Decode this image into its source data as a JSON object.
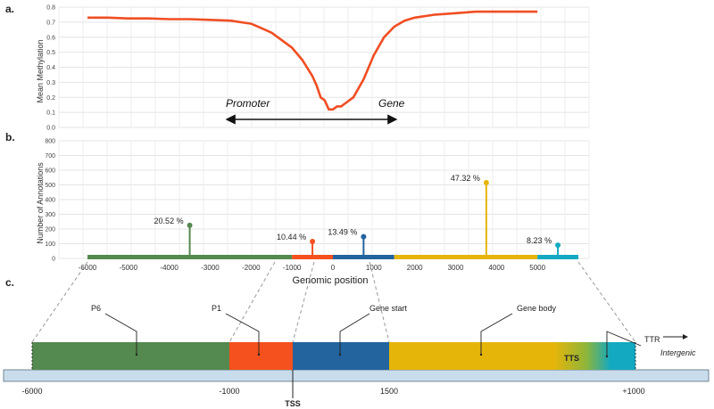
{
  "panels": {
    "a": "a.",
    "b": "b.",
    "c": "c."
  },
  "chart_data": [
    {
      "type": "line",
      "ylabel": "Mean Methylation",
      "ylim": [
        0,
        0.8
      ],
      "yticks": [
        "0.0",
        "0.1",
        "0.2",
        "0.3",
        "0.4",
        "0.5",
        "0.6",
        "0.7",
        "0.8"
      ],
      "xlim": [
        -6000,
        5000
      ],
      "color": "#f04e23",
      "x": [
        -6000,
        -5500,
        -5000,
        -4500,
        -4000,
        -3500,
        -3000,
        -2500,
        -2000,
        -1750,
        -1500,
        -1250,
        -1000,
        -750,
        -500,
        -400,
        -300,
        -200,
        -100,
        0,
        100,
        200,
        300,
        500,
        750,
        1000,
        1250,
        1500,
        1750,
        2000,
        2500,
        3000,
        3500,
        4000,
        4500,
        5000
      ],
      "y": [
        0.73,
        0.73,
        0.725,
        0.725,
        0.72,
        0.72,
        0.715,
        0.71,
        0.69,
        0.66,
        0.63,
        0.58,
        0.53,
        0.45,
        0.34,
        0.28,
        0.2,
        0.18,
        0.12,
        0.12,
        0.14,
        0.14,
        0.16,
        0.2,
        0.32,
        0.48,
        0.6,
        0.67,
        0.71,
        0.73,
        0.75,
        0.76,
        0.77,
        0.77,
        0.77,
        0.77
      ],
      "annotations": {
        "left": "Promoter",
        "right": "Gene"
      }
    },
    {
      "type": "lollipop",
      "ylabel": "Number of Annotations",
      "xlabel": "Genomic position",
      "ylim": [
        0,
        800
      ],
      "yticks": [
        "0",
        "100",
        "200",
        "300",
        "400",
        "500",
        "600",
        "700",
        "800"
      ],
      "xticks": [
        "-6000",
        "-5000",
        "-4000",
        "-3000",
        "-2000",
        "-1000",
        "0",
        "1000",
        "2000",
        "3000",
        "4000",
        "5000"
      ],
      "segments": [
        {
          "from": -6000,
          "to": -1000,
          "color": "#54894f"
        },
        {
          "from": -1000,
          "to": 0,
          "color": "#f4511e"
        },
        {
          "from": 0,
          "to": 1500,
          "color": "#23649e"
        },
        {
          "from": 1500,
          "to": 5000,
          "color": "#e6b50a"
        },
        {
          "from": 5000,
          "to": 6000,
          "color": "#12a9c1"
        }
      ],
      "points": [
        {
          "x": -3500,
          "value": 225,
          "label": "20.52 %",
          "color": "#54894f"
        },
        {
          "x": -500,
          "value": 115,
          "label": "10.44 %",
          "color": "#f4511e"
        },
        {
          "x": 750,
          "value": 148,
          "label": "13.49 %",
          "color": "#23649e"
        },
        {
          "x": 3750,
          "value": 515,
          "label": "47.32 %",
          "color": "#e6b50a"
        },
        {
          "x": 5500,
          "value": 90,
          "label": "8.23 %",
          "color": "#12a9c1"
        }
      ]
    }
  ],
  "diagram": {
    "regions": [
      {
        "name": "P6",
        "color": "#54894f"
      },
      {
        "name": "P1",
        "color": "#f4511e"
      },
      {
        "name": "Gene start",
        "color": "#23649e"
      },
      {
        "name": "Gene body",
        "color": "#e6b50a"
      },
      {
        "name": "TTR",
        "color": "#12a9c1"
      }
    ],
    "tts_label": "TTS",
    "intergenic_label": "Intergenic",
    "tss_label": "TSS",
    "scale_ticks": [
      "-6000",
      "-1000",
      "1500",
      "+1000"
    ]
  }
}
